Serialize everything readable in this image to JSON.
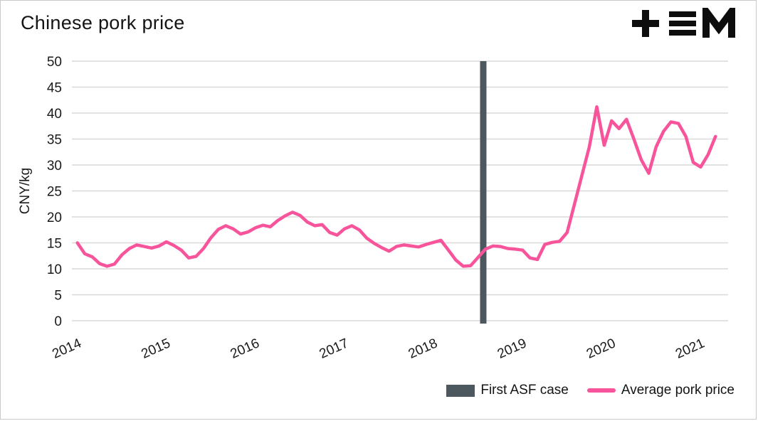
{
  "title": "Chinese pork price",
  "logo_name": "tem-logo",
  "colors": {
    "line": "#f8549b",
    "asf_bar": "#4c575e",
    "grid": "#d9d9d9",
    "text": "#1a1a1a"
  },
  "legend": [
    {
      "label": "First ASF case",
      "swatch": "bar"
    },
    {
      "label": "Average pork price",
      "swatch": "line"
    }
  ],
  "chart_data": {
    "type": "line",
    "title": "Chinese pork price",
    "xlabel": "",
    "ylabel": "CNY/kg",
    "ylim": [
      0,
      50
    ],
    "ytick_step": 5,
    "xlim": [
      2013.98,
      2021.35
    ],
    "x_ticks": [
      2014,
      2015,
      2016,
      2017,
      2018,
      2019,
      2020,
      2021
    ],
    "grid": "horizontal only",
    "legend_position": "bottom right",
    "annotations": [
      {
        "type": "vertical-bar",
        "label": "First ASF case",
        "x": 2018.6
      }
    ],
    "series": [
      {
        "name": "Average pork price",
        "unit": "CNY/kg",
        "x_start_year": 2014,
        "frequency": "monthly",
        "values": [
          15.0,
          12.9,
          12.3,
          11.0,
          10.5,
          10.9,
          12.7,
          13.9,
          14.6,
          14.3,
          14.0,
          14.4,
          15.2,
          14.5,
          13.6,
          12.1,
          12.4,
          13.9,
          16.0,
          17.6,
          18.3,
          17.7,
          16.7,
          17.1,
          17.9,
          18.4,
          18.1,
          19.3,
          20.2,
          20.9,
          20.3,
          19.0,
          18.3,
          18.5,
          17.0,
          16.5,
          17.7,
          18.3,
          17.5,
          15.9,
          14.9,
          14.1,
          13.4,
          14.3,
          14.6,
          14.4,
          14.2,
          14.7,
          15.1,
          15.5,
          13.6,
          11.7,
          10.5,
          10.6,
          12.2,
          13.8,
          14.4,
          14.3,
          13.9,
          13.8,
          13.6,
          12.1,
          11.8,
          14.7,
          15.1,
          15.3,
          17.0,
          22.5,
          28.0,
          33.5,
          41.2,
          33.8,
          38.5,
          37.0,
          38.8,
          35.0,
          31.0,
          28.4,
          33.5,
          36.5,
          38.3,
          38.0,
          35.5,
          30.5,
          29.6,
          32.0,
          35.5
        ]
      }
    ]
  }
}
